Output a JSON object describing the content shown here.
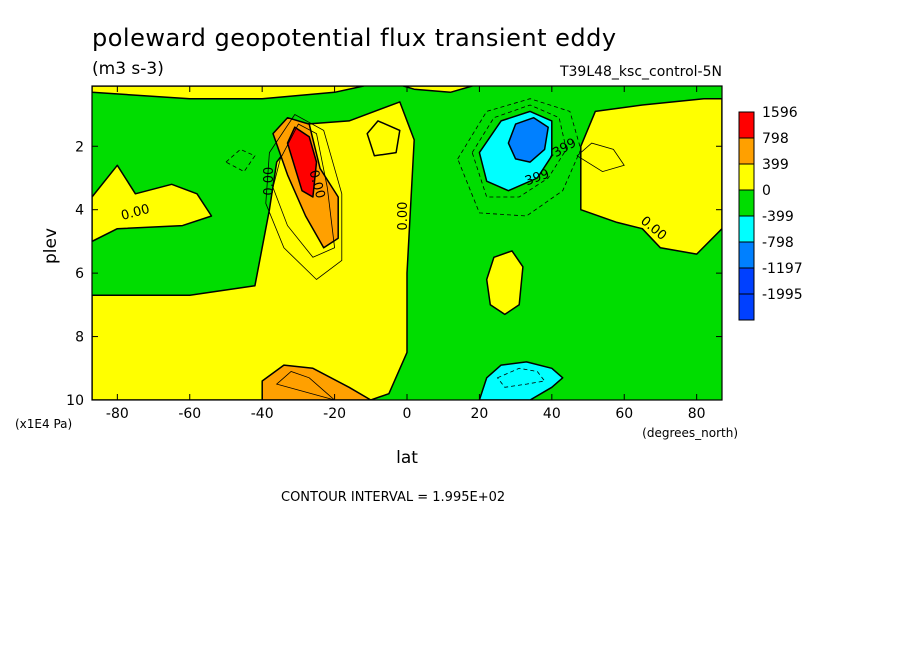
{
  "chart_data": {
    "type": "heatmap",
    "subtype": "filled-contour",
    "title": "poleward geopotential flux transient eddy",
    "units": "(m3 s-3)",
    "run_label": "T39L48_ksc_control-5N",
    "xlabel": "lat",
    "xunits": "(degrees_north)",
    "ylabel": "plev",
    "yunits": "(x1E4 Pa)",
    "xlim": [
      -87,
      87
    ],
    "ylim": [
      10,
      0.1
    ],
    "y_inverted": true,
    "xticks": [
      -80,
      -60,
      -40,
      -20,
      0,
      20,
      40,
      60,
      80
    ],
    "yticks": [
      2,
      4,
      6,
      8,
      10
    ],
    "contour_interval": "CONTOUR INTERVAL = 1.995E+02",
    "contour_labels": [
      "0.00",
      "0.00",
      "0.00",
      "0.00",
      "399",
      "-399",
      "0.00"
    ],
    "legend": {
      "placement": "right",
      "levels": [
        "1596",
        "798",
        "399",
        "0",
        "-399",
        "-798",
        "-1197",
        "-1995"
      ],
      "colors": [
        "#ff0000",
        "#ffa000",
        "#ffff00",
        "#00dd00",
        "#00ffff",
        "#0080ff",
        "#0040ff",
        "#0040ff"
      ]
    },
    "regions": [
      {
        "range": "0 to 399",
        "color": "#ffff00",
        "points": [
          [
            -87,
            10
          ],
          [
            -87,
            6.7
          ],
          [
            -60,
            6.7
          ],
          [
            -42,
            6.4
          ],
          [
            -38,
            4
          ],
          [
            -36,
            2.5
          ],
          [
            -28,
            1.3
          ],
          [
            -16,
            1.2
          ],
          [
            -2,
            0.6
          ],
          [
            2,
            1.8
          ],
          [
            0,
            6
          ],
          [
            0,
            8.5
          ],
          [
            -5,
            9.8
          ],
          [
            -10,
            10
          ]
        ]
      },
      {
        "range": "0 to 399",
        "color": "#ffff00",
        "points": [
          [
            -87,
            5
          ],
          [
            -87,
            3.6
          ],
          [
            -80,
            2.6
          ],
          [
            -75,
            3.5
          ],
          [
            -65,
            3.2
          ],
          [
            -58,
            3.5
          ],
          [
            -54,
            4.2
          ],
          [
            -62,
            4.5
          ],
          [
            -80,
            4.6
          ]
        ]
      },
      {
        "range": "0 to 399",
        "color": "#ffff00",
        "points": [
          [
            -87,
            0.1
          ],
          [
            -87,
            0.3
          ],
          [
            -60,
            0.5
          ],
          [
            -40,
            0.5
          ],
          [
            -20,
            0.3
          ],
          [
            -12,
            0.1
          ]
        ]
      },
      {
        "range": "0 to 399",
        "color": "#ffff00",
        "points": [
          [
            -11,
            1.6
          ],
          [
            -8,
            1.2
          ],
          [
            -2,
            1.5
          ],
          [
            -3,
            2.2
          ],
          [
            -9,
            2.3
          ]
        ]
      },
      {
        "range": "0 to 399",
        "color": "#ffff00",
        "points": [
          [
            48,
            4
          ],
          [
            48,
            2
          ],
          [
            52,
            0.9
          ],
          [
            65,
            0.7
          ],
          [
            82,
            0.5
          ],
          [
            87,
            0.5
          ],
          [
            87,
            4.6
          ],
          [
            80,
            5.4
          ],
          [
            70,
            5.2
          ],
          [
            65,
            4.6
          ],
          [
            58,
            4.4
          ]
        ]
      },
      {
        "range": "0 to 399",
        "color": "#ffff00",
        "points": [
          [
            22,
            6.2
          ],
          [
            24,
            5.5
          ],
          [
            29,
            5.3
          ],
          [
            32,
            5.8
          ],
          [
            31,
            7
          ],
          [
            27,
            7.3
          ],
          [
            23,
            7
          ]
        ]
      },
      {
        "range": "399 to 798",
        "color": "#ffa000",
        "points": [
          [
            -37,
            1.6
          ],
          [
            -33,
            1.1
          ],
          [
            -27,
            1.3
          ],
          [
            -24,
            2.7
          ],
          [
            -19,
            3.6
          ],
          [
            -19,
            4.9
          ],
          [
            -23,
            5.2
          ],
          [
            -28,
            4.2
          ],
          [
            -33,
            2.9
          ]
        ]
      },
      {
        "range": "399 to 798",
        "color": "#ffa000",
        "points": [
          [
            -40,
            9.4
          ],
          [
            -34,
            8.9
          ],
          [
            -26,
            9
          ],
          [
            -16,
            9.6
          ],
          [
            -10,
            10
          ],
          [
            -40,
            10
          ]
        ]
      },
      {
        "range": "798 to 1596",
        "color": "#ff0000",
        "points": [
          [
            -33,
            1.9
          ],
          [
            -31,
            1.4
          ],
          [
            -27,
            1.7
          ],
          [
            -25,
            2.5
          ],
          [
            -26,
            3.6
          ],
          [
            -29,
            3.4
          ]
        ]
      },
      {
        "range": "-399 to -798",
        "color": "#00ffff",
        "points": [
          [
            20,
            2.2
          ],
          [
            26,
            1.2
          ],
          [
            34,
            0.9
          ],
          [
            40,
            1.2
          ],
          [
            40,
            2.3
          ],
          [
            36,
            3
          ],
          [
            28,
            3.4
          ],
          [
            22,
            3.1
          ]
        ]
      },
      {
        "range": "-399 to -798",
        "color": "#00ffff",
        "points": [
          [
            20,
            10
          ],
          [
            22,
            9.3
          ],
          [
            26,
            8.9
          ],
          [
            33,
            8.8
          ],
          [
            40,
            9
          ],
          [
            43,
            9.3
          ],
          [
            40,
            9.6
          ],
          [
            34,
            10
          ]
        ]
      },
      {
        "range": "-798 to -1197",
        "color": "#0080ff",
        "points": [
          [
            28,
            1.9
          ],
          [
            30,
            1.3
          ],
          [
            35,
            1.1
          ],
          [
            39,
            1.4
          ],
          [
            38,
            2.1
          ],
          [
            34,
            2.5
          ],
          [
            30,
            2.4
          ]
        ]
      },
      {
        "range": "0 to 399 (narrow)",
        "color": "#ffff00",
        "points": [
          [
            -1,
            0.1
          ],
          [
            2,
            0.2
          ],
          [
            12,
            0.3
          ],
          [
            18,
            0.1
          ]
        ]
      }
    ],
    "contour_lines": [
      {
        "style": "solid",
        "points": [
          [
            -35,
            2.4
          ],
          [
            -30,
            1.3
          ],
          [
            -25,
            1.6
          ],
          [
            -22,
            3.3
          ],
          [
            -20,
            5.2
          ],
          [
            -26,
            5.5
          ],
          [
            -33,
            4.5
          ],
          [
            -37,
            3.3
          ]
        ]
      },
      {
        "style": "solid",
        "points": [
          [
            -38,
            2.2
          ],
          [
            -31,
            1
          ],
          [
            -23,
            1.5
          ],
          [
            -18,
            3.5
          ],
          [
            -18,
            5.6
          ],
          [
            -25,
            6.2
          ],
          [
            -34,
            5.2
          ],
          [
            -39,
            3.8
          ]
        ]
      },
      {
        "style": "solid",
        "points": [
          [
            -36,
            9.5
          ],
          [
            -32,
            9.1
          ],
          [
            -27,
            9.3
          ],
          [
            -22,
            9.8
          ],
          [
            -20,
            10
          ]
        ]
      },
      {
        "style": "dashed",
        "points": [
          [
            18,
            2.2
          ],
          [
            24,
            1.1
          ],
          [
            34,
            0.7
          ],
          [
            42,
            1.1
          ],
          [
            44,
            2.1
          ],
          [
            39,
            3
          ],
          [
            31,
            3.6
          ],
          [
            22,
            3.6
          ]
        ]
      },
      {
        "style": "dashed",
        "points": [
          [
            14,
            2.4
          ],
          [
            22,
            0.9
          ],
          [
            34,
            0.5
          ],
          [
            45,
            0.9
          ],
          [
            48,
            2.1
          ],
          [
            43,
            3.4
          ],
          [
            33,
            4.2
          ],
          [
            20,
            4.1
          ]
        ]
      },
      {
        "style": "dashed",
        "points": [
          [
            25,
            9.3
          ],
          [
            31,
            9
          ],
          [
            36,
            9.1
          ],
          [
            38,
            9.4
          ],
          [
            33,
            9.5
          ],
          [
            27,
            9.6
          ]
        ]
      },
      {
        "style": "dashed",
        "points": [
          [
            -50,
            2.5
          ],
          [
            -46,
            2.1
          ],
          [
            -42,
            2.3
          ],
          [
            -45,
            2.8
          ]
        ]
      },
      {
        "style": "solid",
        "points": [
          [
            47,
            2.3
          ],
          [
            51,
            1.9
          ],
          [
            57,
            2.1
          ],
          [
            60,
            2.6
          ],
          [
            54,
            2.8
          ]
        ]
      }
    ]
  }
}
